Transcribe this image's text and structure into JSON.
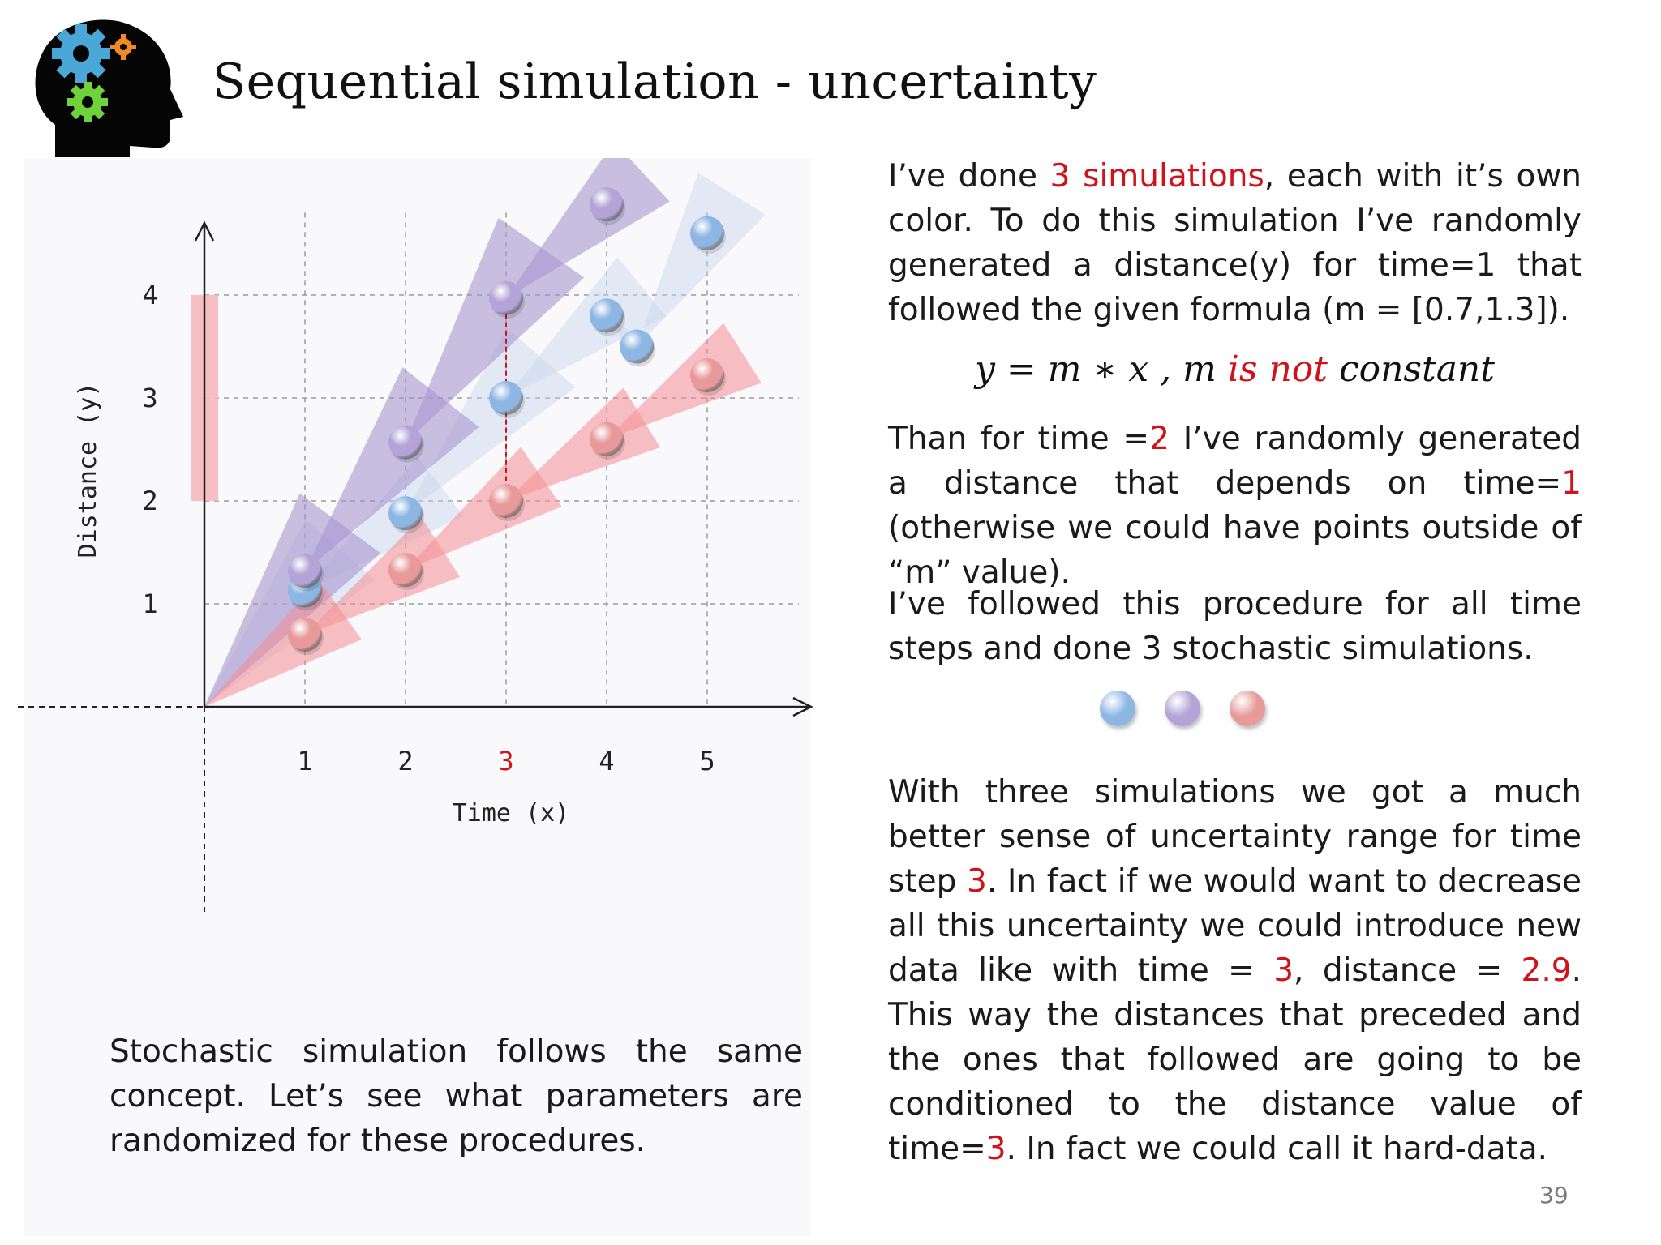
{
  "slide": {
    "title": "Sequential simulation - uncertainty",
    "page_number": "39"
  },
  "logo": {
    "icon": "head-with-gears-icon"
  },
  "right_text": {
    "p1_a": "I’ve done ",
    "p1_red": "3 simulations",
    "p1_b": ", each with it’s own color. To do this simulation I’ve randomly generated a distance(y) for time=1 that followed the given formula (m = [0.7,1.3]).",
    "formula_a": "y = m ∗ x , m ",
    "formula_red": "is not",
    "formula_b": " constant",
    "p2_a": "Than for time =",
    "p2_red1": "2",
    "p2_b": " I’ve randomly generated a distance that depends on time=",
    "p2_red2": "1",
    "p2_c": " (otherwise we could have points outside of “m” value).",
    "p3": "I’ve followed this procedure for all time steps and done 3 stochastic simulations.",
    "p4_a": "With three simulations we got a much better sense of uncertainty range for time step ",
    "p4_red1": "3",
    "p4_b": ". In fact if we would want to decrease all this uncertainty we could introduce new data like with time = ",
    "p4_red2": "3",
    "p4_c": ", distance = ",
    "p4_red3": "2.9",
    "p4_d": ". This way the distances that preceded and the ones that followed are going to be conditioned to the distance value of time=",
    "p4_red4": "3",
    "p4_e": ". In fact we could call it hard-data."
  },
  "left_text": "Stochastic simulation follows the same concept. Let’s see what parameters are randomized for these procedures.",
  "legend": {
    "colors": [
      "#8db6e3",
      "#b3a3d6",
      "#e89a9a"
    ]
  },
  "chart_data": {
    "type": "scatter",
    "xlabel": "Time (x)",
    "ylabel": "Distance (y)",
    "x_ticks": [
      "1",
      "2",
      "3",
      "4",
      "5"
    ],
    "y_ticks": [
      "1",
      "2",
      "3",
      "4"
    ],
    "highlight_x_tick": "3",
    "xlim": [
      0,
      5.9
    ],
    "ylim": [
      0,
      4.8
    ],
    "grid": true,
    "series": [
      {
        "color": "#8db6e3",
        "points": [
          [
            1,
            1.13
          ],
          [
            2,
            1.88
          ],
          [
            3,
            3.0
          ],
          [
            4,
            3.8
          ],
          [
            4.3,
            3.5
          ],
          [
            5,
            4.6
          ]
        ]
      },
      {
        "color": "#b3a3d6",
        "points": [
          [
            1,
            1.32
          ],
          [
            2,
            2.57
          ],
          [
            3,
            3.97
          ],
          [
            4,
            4.88
          ]
        ]
      },
      {
        "color": "#e89a9a",
        "points": [
          [
            1,
            0.7
          ],
          [
            2,
            1.33
          ],
          [
            3,
            2.0
          ],
          [
            4,
            2.6
          ],
          [
            5,
            3.22
          ]
        ]
      }
    ],
    "uncertainty_bar": {
      "color": "#f7b8bb",
      "y_range": [
        2.0,
        4.0
      ]
    }
  }
}
